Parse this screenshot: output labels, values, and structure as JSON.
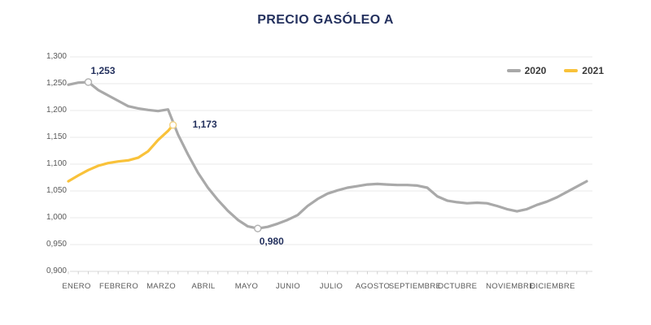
{
  "chart": {
    "title": "PRECIO GASÓLEO A"
  },
  "chart_data": {
    "type": "line",
    "title": "PRECIO GASÓLEO A",
    "x_unit": "week-of-year",
    "categories": [
      "ENERO",
      "FEBRERO",
      "MARZO",
      "ABRIL",
      "MAYO",
      "JUNIO",
      "JULIO",
      "AGOSTO",
      "SEPTIEMBRE",
      "OCTUBRE",
      "NOVIEMBRE",
      "DICIEMBRE"
    ],
    "y_tick_labels": [
      "1,300",
      "1,250",
      "1,200",
      "1,150",
      "1,100",
      "1,050",
      "1,000",
      "0,950",
      "0,900"
    ],
    "y_tick_values": [
      1.3,
      1.25,
      1.2,
      1.15,
      1.1,
      1.05,
      1.0,
      0.95,
      0.9
    ],
    "ylim": [
      0.9,
      1.3
    ],
    "grid": "horizontal",
    "legend_position": "top-right",
    "axis_text_color": "#595959",
    "grid_color": "#E9E9E9",
    "axis_line_color": "#D9D9D9",
    "title_color": "#24315E",
    "series": [
      {
        "name": "2020",
        "color": "#A9A9A9",
        "points": [
          [
            0,
            1.248
          ],
          [
            1,
            1.252
          ],
          [
            2,
            1.253
          ],
          [
            3,
            1.238
          ],
          [
            4,
            1.228
          ],
          [
            5,
            1.218
          ],
          [
            6,
            1.208
          ],
          [
            7,
            1.204
          ],
          [
            8,
            1.201
          ],
          [
            9,
            1.199
          ],
          [
            10,
            1.202
          ],
          [
            11,
            1.155
          ],
          [
            12,
            1.118
          ],
          [
            13,
            1.084
          ],
          [
            14,
            1.056
          ],
          [
            15,
            1.033
          ],
          [
            16,
            1.013
          ],
          [
            17,
            0.996
          ],
          [
            18,
            0.984
          ],
          [
            19,
            0.98
          ],
          [
            20,
            0.983
          ],
          [
            21,
            0.989
          ],
          [
            22,
            0.996
          ],
          [
            23,
            1.005
          ],
          [
            24,
            1.022
          ],
          [
            25,
            1.035
          ],
          [
            26,
            1.045
          ],
          [
            27,
            1.051
          ],
          [
            28,
            1.056
          ],
          [
            29,
            1.059
          ],
          [
            30,
            1.062
          ],
          [
            31,
            1.063
          ],
          [
            32,
            1.062
          ],
          [
            33,
            1.061
          ],
          [
            34,
            1.061
          ],
          [
            35,
            1.06
          ],
          [
            36,
            1.056
          ],
          [
            37,
            1.04
          ],
          [
            38,
            1.032
          ],
          [
            39,
            1.029
          ],
          [
            40,
            1.027
          ],
          [
            41,
            1.028
          ],
          [
            42,
            1.027
          ],
          [
            43,
            1.022
          ],
          [
            44,
            1.016
          ],
          [
            45,
            1.012
          ],
          [
            46,
            1.016
          ],
          [
            47,
            1.024
          ],
          [
            48,
            1.03
          ],
          [
            49,
            1.038
          ],
          [
            50,
            1.048
          ],
          [
            51,
            1.058
          ],
          [
            52,
            1.068
          ]
        ]
      },
      {
        "name": "2021",
        "color": "#F9C23A",
        "points": [
          [
            0,
            1.068
          ],
          [
            1,
            1.079
          ],
          [
            2,
            1.089
          ],
          [
            3,
            1.097
          ],
          [
            4,
            1.102
          ],
          [
            5,
            1.105
          ],
          [
            6,
            1.107
          ],
          [
            7,
            1.112
          ],
          [
            8,
            1.124
          ],
          [
            9,
            1.145
          ],
          [
            10,
            1.162
          ],
          [
            10.5,
            1.173
          ]
        ]
      }
    ],
    "annotations": [
      {
        "label": "1,253",
        "series": 0,
        "week": 2,
        "value": 1.253,
        "placement": "above"
      },
      {
        "label": "1,173",
        "series": 1,
        "week": 10.5,
        "value": 1.173,
        "placement": "right"
      },
      {
        "label": "0,980",
        "series": 0,
        "week": 19,
        "value": 0.98,
        "placement": "below"
      }
    ]
  }
}
